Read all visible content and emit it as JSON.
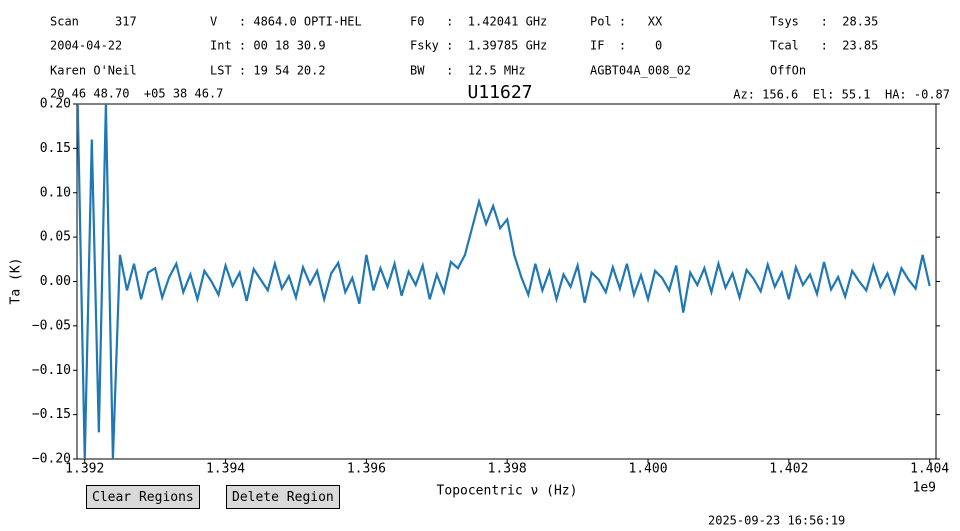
{
  "header": {
    "rows": [
      [
        "Scan     317",
        "V   : 4864.0 OPTI-HEL",
        "F0   :  1.42041 GHz",
        "Pol :   XX",
        "Tsys   :  28.35"
      ],
      [
        "2004-04-22",
        "Int : 00 18 30.9",
        "Fsky :  1.39785 GHz",
        "IF  :    0",
        "Tcal   :  23.85"
      ],
      [
        "Karen O'Neil",
        "LST : 19 54 20.2",
        "BW   :  12.5 MHz",
        "AGBT04A_008_02",
        "OffOn"
      ]
    ],
    "coordinates": "20 46 48.70  +05 38 46.7",
    "pointing": "Az: 156.6  El: 55.1  HA: -0.87"
  },
  "chart_data": {
    "type": "line",
    "title": "U11627",
    "x_label": "Topocentric ν (Hz)",
    "y_label": "Ta (K)",
    "x_offset_label": "1e9",
    "color": "#1f77b4",
    "xlim": [
      1.39189,
      1.40409
    ],
    "xticks": [
      1.392,
      1.394,
      1.396,
      1.398,
      {
        "value": 1.4,
        "label": "1.400"
      },
      1.402,
      1.404
    ],
    "ylim": [
      -0.2,
      0.2
    ],
    "yticks": [
      {
        "value": -0.2,
        "label": "−0.20"
      },
      {
        "value": -0.15,
        "label": "−0.15"
      },
      {
        "value": -0.1,
        "label": "−0.10"
      },
      {
        "value": -0.05,
        "label": "−0.05"
      },
      {
        "value": 0,
        "label": "0.00"
      },
      {
        "value": 0.05,
        "label": "0.05"
      },
      {
        "value": 0.1,
        "label": "0.10"
      },
      {
        "value": 0.15,
        "label": "0.15"
      },
      {
        "value": 0.2,
        "label": "0.20"
      }
    ],
    "x": [
      1.3919,
      1.392,
      1.3921,
      1.3922,
      1.3923,
      1.3924,
      1.3925,
      1.3926,
      1.3927,
      1.3928,
      1.3929,
      1.393,
      1.3931,
      1.3932,
      1.3933,
      1.3934,
      1.3935,
      1.3936,
      1.3937,
      1.3938,
      1.3939,
      1.394,
      1.3941,
      1.3942,
      1.3943,
      1.3944,
      1.3945,
      1.3946,
      1.3947,
      1.3948,
      1.3949,
      1.395,
      1.3951,
      1.3952,
      1.3953,
      1.3954,
      1.3955,
      1.3956,
      1.3957,
      1.3958,
      1.3959,
      1.396,
      1.3961,
      1.3962,
      1.3963,
      1.3964,
      1.3965,
      1.3966,
      1.3967,
      1.3968,
      1.3969,
      1.397,
      1.3971,
      1.3972,
      1.3973,
      1.3974,
      1.3975,
      1.3976,
      1.3977,
      1.3978,
      1.3979,
      1.398,
      1.3981,
      1.3982,
      1.3983,
      1.3984,
      1.3985,
      1.3986,
      1.3987,
      1.3988,
      1.3989,
      1.399,
      1.3991,
      1.3992,
      1.3993,
      1.3994,
      1.3995,
      1.3996,
      1.3997,
      1.3998,
      1.3999,
      1.4,
      1.4001,
      1.4002,
      1.4003,
      1.4004,
      1.4005,
      1.4006,
      1.4007,
      1.4008,
      1.4009,
      1.401,
      1.4011,
      1.4012,
      1.4013,
      1.4014,
      1.4015,
      1.4016,
      1.4017,
      1.4018,
      1.4019,
      1.402,
      1.4021,
      1.4022,
      1.4023,
      1.4024,
      1.4025,
      1.4026,
      1.4027,
      1.4028,
      1.4029,
      1.403,
      1.4031,
      1.4032,
      1.4033,
      1.4034,
      1.4035,
      1.4036,
      1.4037,
      1.4038,
      1.4039,
      1.404
    ],
    "values": [
      0.2,
      -0.2,
      0.16,
      -0.17,
      0.2,
      -0.2,
      0.03,
      -0.01,
      0.02,
      -0.02,
      0.01,
      0.015,
      -0.018,
      0.005,
      0.02,
      -0.012,
      0.008,
      -0.02,
      0.012,
      0.0,
      -0.015,
      0.018,
      -0.005,
      0.01,
      -0.022,
      0.014,
      0.002,
      -0.01,
      0.02,
      -0.008,
      0.006,
      -0.018,
      0.016,
      -0.003,
      0.012,
      -0.02,
      0.009,
      0.021,
      -0.012,
      0.004,
      -0.025,
      0.03,
      -0.01,
      0.015,
      -0.006,
      0.02,
      -0.016,
      0.011,
      -0.004,
      0.018,
      -0.02,
      0.008,
      -0.012,
      0.022,
      0.015,
      0.03,
      0.06,
      0.09,
      0.065,
      0.085,
      0.06,
      0.07,
      0.03,
      0.005,
      -0.015,
      0.02,
      -0.01,
      0.012,
      -0.02,
      0.008,
      -0.006,
      0.018,
      -0.024,
      0.01,
      0.002,
      -0.012,
      0.016,
      -0.008,
      0.02,
      -0.015,
      0.007,
      -0.02,
      0.012,
      0.004,
      -0.01,
      0.018,
      -0.035,
      0.01,
      -0.004,
      0.015,
      -0.012,
      0.02,
      -0.007,
      0.009,
      -0.018,
      0.013,
      0.003,
      -0.011,
      0.019,
      -0.006,
      0.01,
      -0.02,
      0.016,
      -0.004,
      0.008,
      -0.014,
      0.022,
      -0.009,
      0.005,
      -0.017,
      0.012,
      0.0,
      -0.01,
      0.018,
      -0.006,
      0.009,
      -0.013,
      0.015,
      0.002,
      -0.008,
      0.03,
      -0.005
    ]
  },
  "buttons": [
    "Clear Regions",
    "Delete Region"
  ],
  "timestamp": "2025-09-23 16:56:19"
}
